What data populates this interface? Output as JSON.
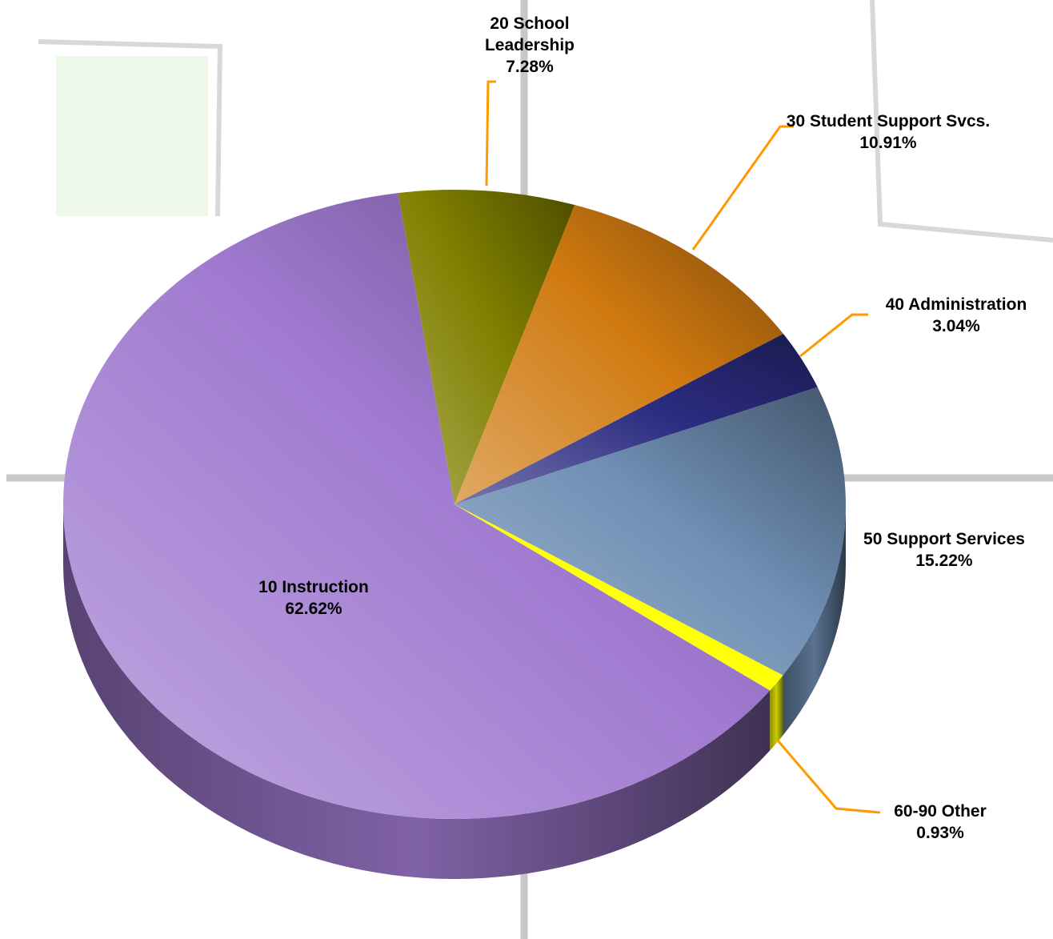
{
  "chart_data": {
    "type": "pie",
    "categories": [
      "10 Instruction",
      "20 School Leadership",
      "30 Student Support Svcs.",
      "40 Administration",
      "50 Support Services",
      "60-90 Other"
    ],
    "values": [
      62.62,
      7.28,
      10.91,
      3.04,
      15.22,
      0.93
    ],
    "value_labels": [
      "62.62%",
      "7.28%",
      "10.91%",
      "3.04%",
      "15.22%",
      "0.93%"
    ],
    "colors": [
      "#a07ad0",
      "#808000",
      "#d07a10",
      "#2c2c82",
      "#6f8fb4",
      "#ffff00"
    ]
  }
}
